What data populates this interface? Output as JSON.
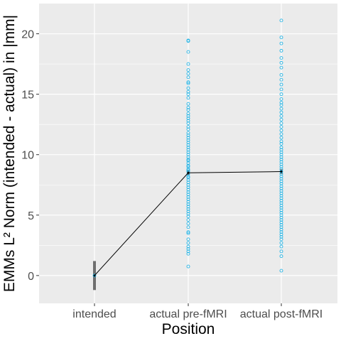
{
  "chart_data": {
    "type": "scatter",
    "title": "",
    "xlabel": "Position",
    "ylabel": "EMMs L² Norm (intended - actual) in |mm|",
    "categories": [
      "intended",
      "actual pre-fMRI",
      "actual post-fMRI"
    ],
    "ylim": [
      -2.3,
      22.5
    ],
    "yticks": [
      0,
      5,
      10,
      15,
      20
    ],
    "grid": true,
    "background_color": "#ebebeb",
    "grid_color": "#ffffff",
    "point_color": "#29b6e6",
    "mean_line_color": "#000000",
    "error_bar_color": "#6e6e6e",
    "means": [
      0.0,
      8.5,
      8.6
    ],
    "error_bars": [
      {
        "low": -1.2,
        "high": 1.2
      },
      {
        "low": 8.3,
        "high": 8.7
      },
      {
        "low": 8.4,
        "high": 8.8
      }
    ],
    "points": [
      [
        0.0
      ],
      [
        19.45,
        19.4,
        18.5,
        17.5,
        17.0,
        16.7,
        16.4,
        16.0,
        15.9,
        15.5,
        15.2,
        15.0,
        14.7,
        14.2,
        13.9,
        13.7,
        13.4,
        13.2,
        13.0,
        12.8,
        12.6,
        12.3,
        12.1,
        11.8,
        11.6,
        11.4,
        11.2,
        11.0,
        10.8,
        10.6,
        10.4,
        10.2,
        10.0,
        9.8,
        9.6,
        9.5,
        9.3,
        9.1,
        9.0,
        8.8,
        8.7,
        8.6,
        8.4,
        8.2,
        8.1,
        7.9,
        7.7,
        7.5,
        7.3,
        7.1,
        6.9,
        6.7,
        6.5,
        6.3,
        6.1,
        5.9,
        5.7,
        5.5,
        5.3,
        5.1,
        4.9,
        4.6,
        4.3,
        4.0,
        3.6,
        3.5,
        3.0,
        2.7,
        2.4,
        2.2,
        2.0,
        1.8,
        0.75
      ],
      [
        21.1,
        19.7,
        19.2,
        18.6,
        18.0,
        17.6,
        17.2,
        16.6,
        16.2,
        15.8,
        15.4,
        15.0,
        14.6,
        14.3,
        14.1,
        13.8,
        13.5,
        13.2,
        12.9,
        12.6,
        12.3,
        12.0,
        11.7,
        11.4,
        11.1,
        10.9,
        10.6,
        10.4,
        10.2,
        10.0,
        9.8,
        9.6,
        9.4,
        9.2,
        9.0,
        8.8,
        8.6,
        8.4,
        8.2,
        8.0,
        7.8,
        7.6,
        7.4,
        7.2,
        7.0,
        6.8,
        6.6,
        6.4,
        6.2,
        6.0,
        5.8,
        5.6,
        5.4,
        5.2,
        5.0,
        4.8,
        4.6,
        4.4,
        4.2,
        4.0,
        3.8,
        3.6,
        3.4,
        3.2,
        3.0,
        2.7,
        2.4,
        2.0,
        1.6,
        0.4
      ]
    ]
  }
}
